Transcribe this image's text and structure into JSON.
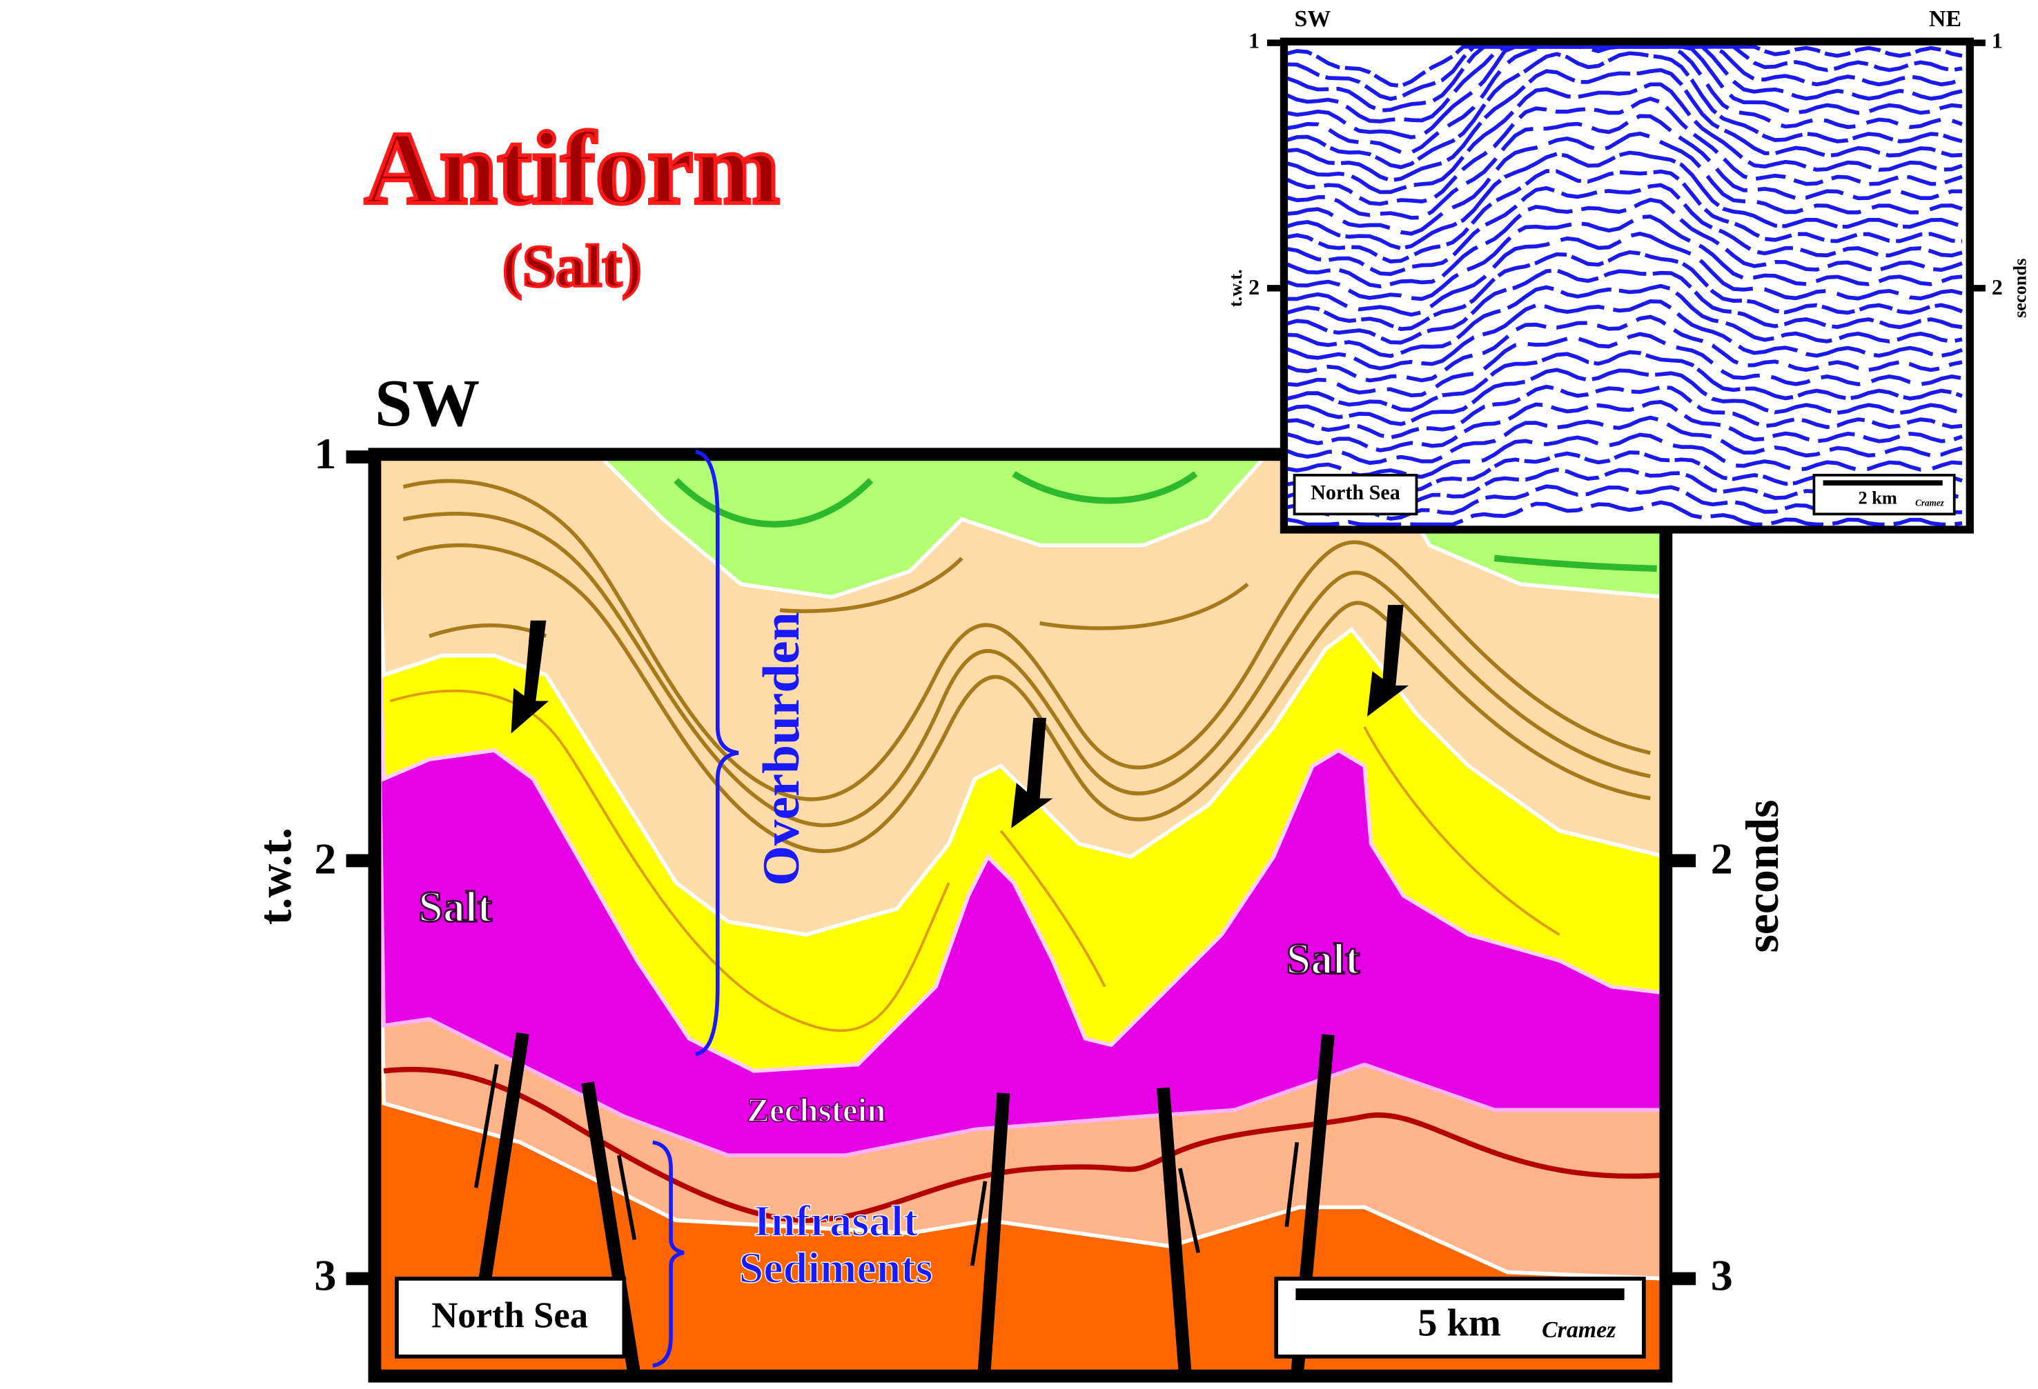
{
  "header": {
    "title": "Antiform",
    "subtitle": "(Salt)"
  },
  "section": {
    "direction": "SW",
    "left_axis_label": "t.w.t.",
    "right_axis_label": "seconds",
    "ticks": [
      1,
      2,
      3
    ],
    "labels": {
      "overburden": "Overburden",
      "salt": [
        "Salt",
        "Salt"
      ],
      "zechstein": "Zechstein",
      "infrasalt": [
        "Infrasalt",
        "Sediments"
      ]
    },
    "location": "North Sea",
    "scale": "5 km",
    "author": "Cramez"
  },
  "inset": {
    "left_direction": "SW",
    "right_direction": "NE",
    "left_axis_label": "t.w.t.",
    "right_axis_label": "seconds",
    "ticks": [
      1,
      2
    ],
    "location": "North Sea",
    "scale": "2 km",
    "author": "Cramez"
  }
}
